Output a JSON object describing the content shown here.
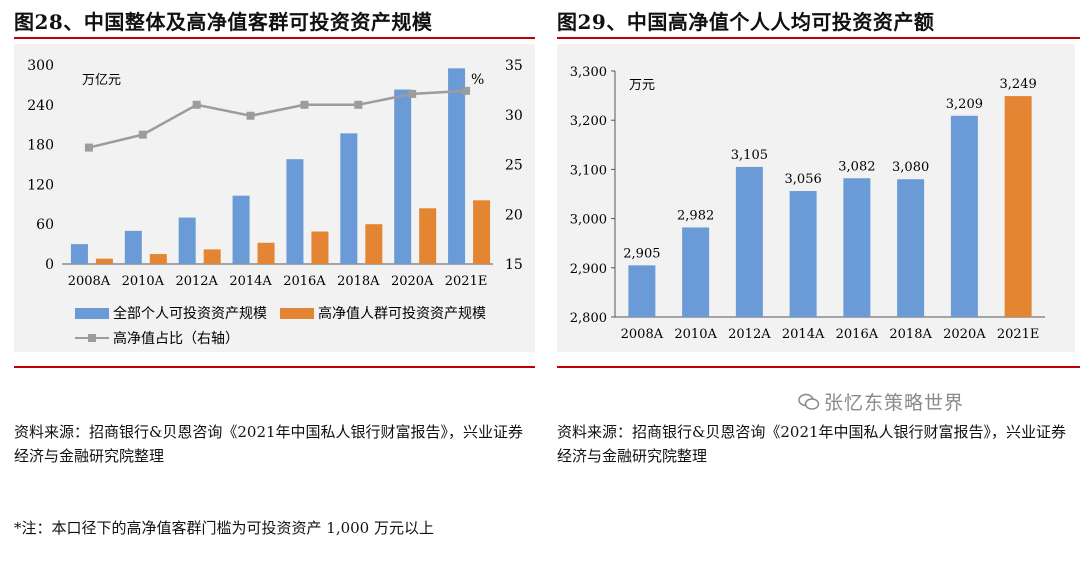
{
  "left": {
    "title": "图28、中国整体及高净值客群可投资资产规模",
    "unit_left": "万亿元",
    "unit_right": "%",
    "source_text": "资料来源：招商银行&贝恩咨询《2021年中国私人银行财富报告》，兴业证券经济与金融研究院整理",
    "note_text": "*注：本口径下的高净值客群门槛为可投资资产 1,000 万元以上"
  },
  "right": {
    "title": "图29、中国高净值个人人均可投资资产额",
    "unit": "万元",
    "source_text": "资料来源：招商银行&贝恩咨询《2021年中国私人银行财富报告》，兴业证券经济与金融研究院整理",
    "watermark": "张忆东策略世界"
  },
  "colors": {
    "blue": "#6b9bd6",
    "orange": "#e38532",
    "gray": "#9c9c9c",
    "red_rule": "#c00000"
  },
  "chart_data": [
    {
      "type": "bar",
      "categories": [
        "2008A",
        "2010A",
        "2012A",
        "2014A",
        "2016A",
        "2018A",
        "2020A",
        "2021E"
      ],
      "series": [
        {
          "name": "全部个人可投资资产规模",
          "axis": "left",
          "values": [
            30,
            50,
            70,
            103,
            158,
            197,
            263,
            295
          ]
        },
        {
          "name": "高净值人群可投资资产规模",
          "axis": "left",
          "values": [
            8,
            15,
            22,
            32,
            49,
            60,
            84,
            96
          ]
        },
        {
          "name": "高净值占比（右轴）",
          "type": "line",
          "axis": "right",
          "values": [
            26.7,
            28.0,
            31.0,
            29.9,
            31.0,
            31.0,
            32.1,
            32.4
          ]
        }
      ],
      "y_left": {
        "ylim": [
          0,
          300
        ],
        "ticks": [
          0,
          60,
          120,
          180,
          240,
          300
        ]
      },
      "y_right": {
        "ylim": [
          15,
          35
        ],
        "ticks": [
          15,
          20,
          25,
          30,
          35
        ]
      },
      "legend_position": "bottom"
    },
    {
      "type": "bar",
      "categories": [
        "2008A",
        "2010A",
        "2012A",
        "2014A",
        "2016A",
        "2018A",
        "2020A",
        "2021E"
      ],
      "values": [
        2905,
        2982,
        3105,
        3056,
        3082,
        3080,
        3209,
        3249
      ],
      "labels": [
        "2,905",
        "2,982",
        "3,105",
        "3,056",
        "3,082",
        "3,080",
        "3,209",
        "3,249"
      ],
      "highlight_last": true,
      "ylim": [
        2800,
        3300
      ],
      "ticks": [
        2800,
        2900,
        3000,
        3100,
        3200,
        3300
      ],
      "tick_labels": [
        "2,800",
        "2,900",
        "3,000",
        "3,100",
        "3,200",
        "3,300"
      ]
    }
  ]
}
